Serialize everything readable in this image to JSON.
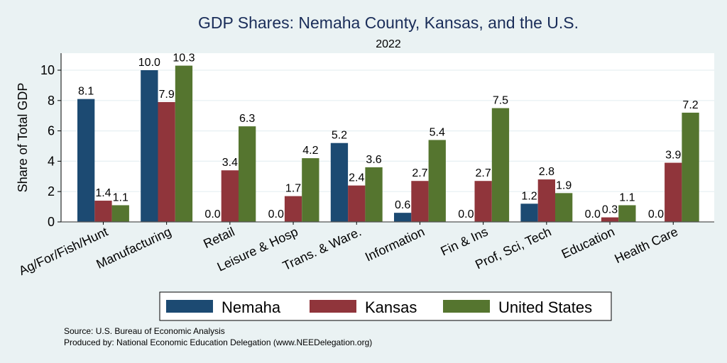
{
  "chart_data": {
    "type": "bar",
    "title": "GDP Shares: Nemaha County, Kansas, and the U.S.",
    "subtitle": "2022",
    "xlabel": "",
    "ylabel": "Share of Total GDP",
    "ylim": [
      0,
      11
    ],
    "yticks": [
      0,
      2,
      4,
      6,
      8,
      10
    ],
    "grid": true,
    "legend_position": "bottom",
    "categories": [
      "Ag/For/Fish/Hunt",
      "Manufacturing",
      "Retail",
      "Leisure & Hosp",
      "Trans. & Ware.",
      "Information",
      "Fin & Ins",
      "Prof, Sci, Tech",
      "Education",
      "Health Care"
    ],
    "series": [
      {
        "name": "Nemaha",
        "color": "#1c4a72",
        "values": [
          8.1,
          10.0,
          0.0,
          0.0,
          5.2,
          0.6,
          0.0,
          1.2,
          0.0,
          0.0
        ]
      },
      {
        "name": "Kansas",
        "color": "#90353b",
        "values": [
          1.4,
          7.9,
          3.4,
          1.7,
          2.4,
          2.7,
          2.7,
          2.8,
          0.3,
          3.9
        ]
      },
      {
        "name": "United States",
        "color": "#55752f",
        "values": [
          1.1,
          10.3,
          6.3,
          4.2,
          3.6,
          5.4,
          7.5,
          1.9,
          1.1,
          7.2
        ]
      }
    ],
    "value_label_format": "0.0"
  },
  "notes": {
    "source": "Source: U.S. Bureau of Economic Analysis",
    "produced_by": "Produced by: National Economic Education Delegation (www.NEEDelegation.org)"
  }
}
